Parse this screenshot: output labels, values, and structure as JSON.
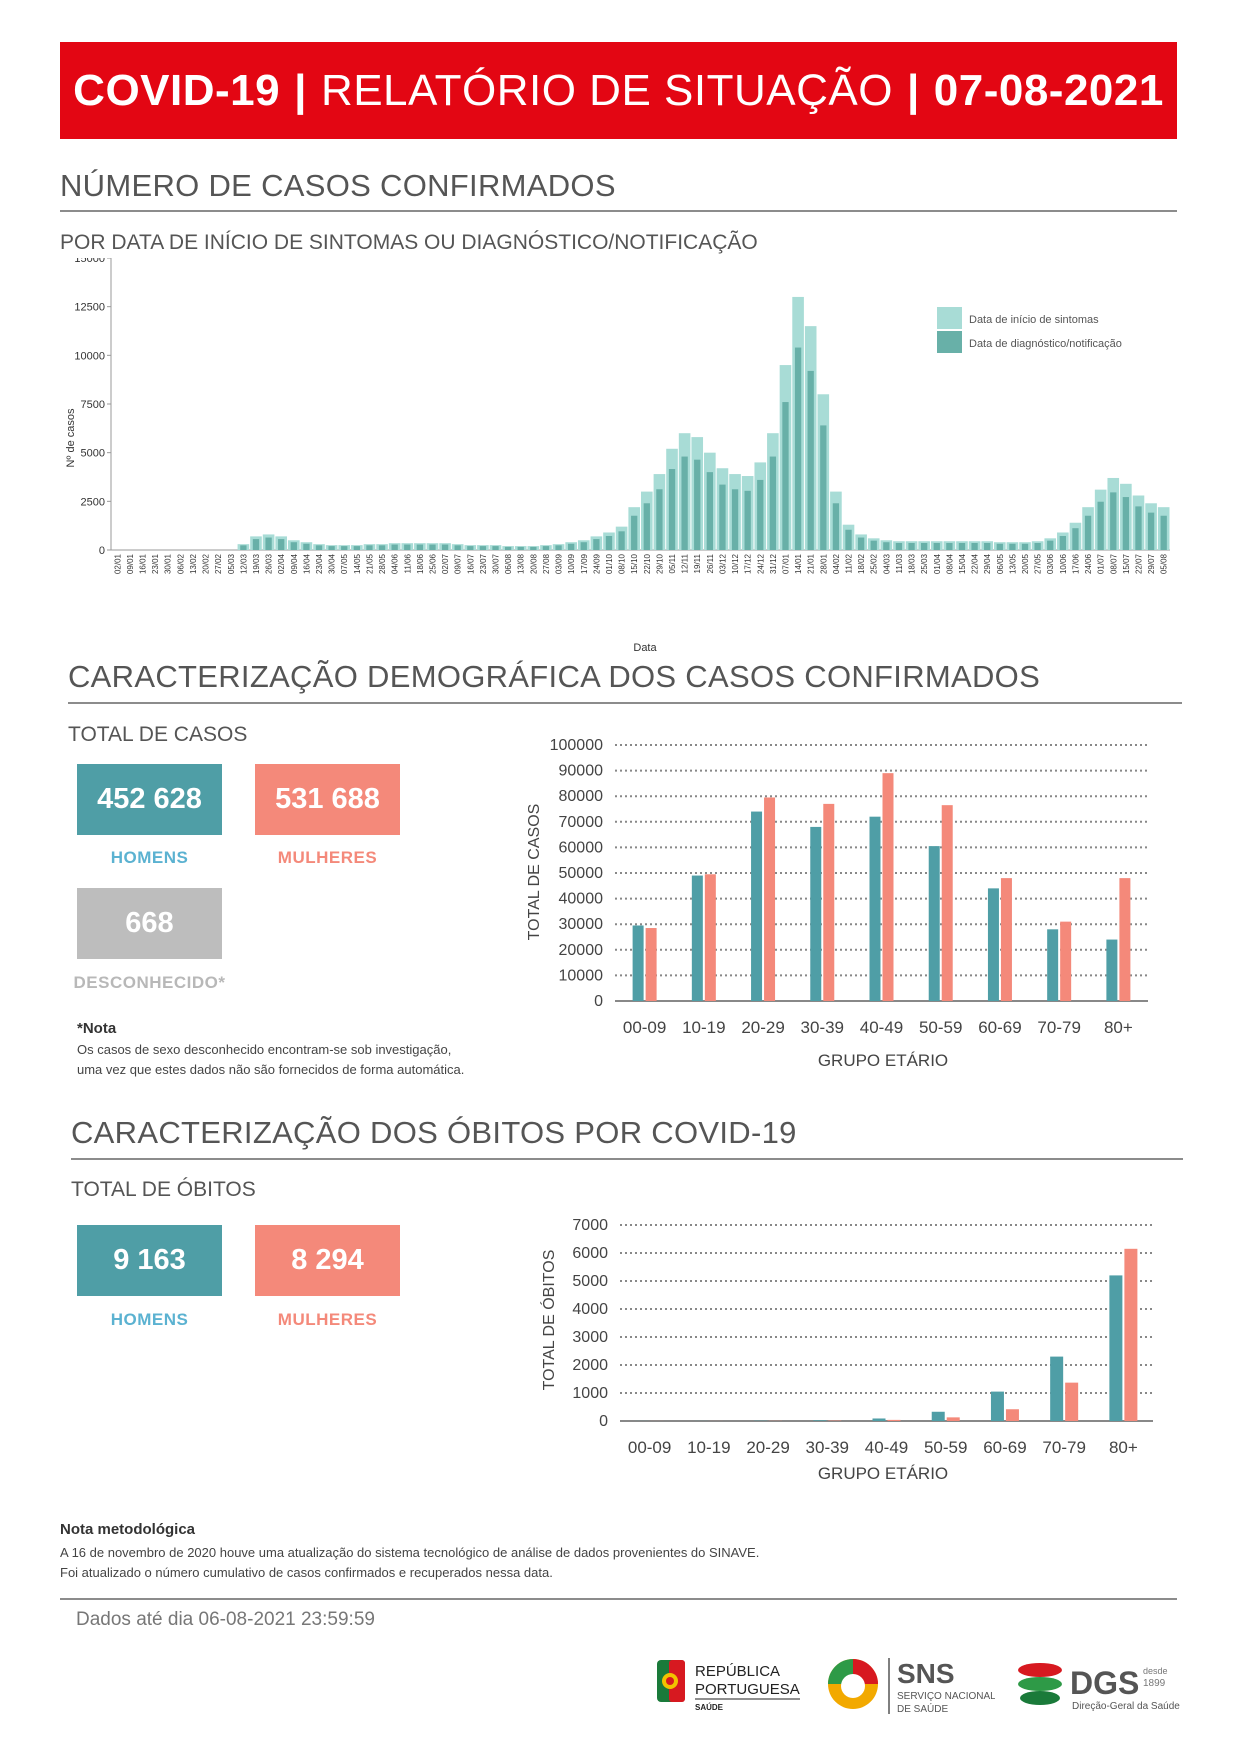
{
  "header": {
    "part1": "COVID-19",
    "sep1": "|",
    "part2": "RELATÓRIO DE SITUAÇÃO",
    "sep2": "|",
    "date": "07-08-2021"
  },
  "section1": {
    "title": "NÚMERO DE CASOS CONFIRMADOS",
    "subtitle": "POR DATA DE INÍCIO DE SINTOMAS OU DIAGNÓSTICO/NOTIFICAÇÃO"
  },
  "section2": {
    "title": "CARACTERIZAÇÃO DEMOGRÁFICA DOS CASOS CONFIRMADOS",
    "subtitle": "TOTAL DE CASOS",
    "men_value": "452 628",
    "men_label": "HOMENS",
    "women_value": "531 688",
    "women_label": "MULHERES",
    "unknown_value": "668",
    "unknown_label": "DESCONHECIDO*",
    "note_title": "*Nota",
    "note_line1": "Os casos de sexo desconhecido encontram-se sob investigação,",
    "note_line2": "uma vez que estes dados não são fornecidos de forma automática."
  },
  "section3": {
    "title": "CARACTERIZAÇÃO DOS ÓBITOS POR COVID-19",
    "subtitle": "TOTAL DE ÓBITOS",
    "men_value": "9 163",
    "men_label": "HOMENS",
    "women_value": "8 294",
    "women_label": "MULHERES"
  },
  "methodology": {
    "title": "Nota metodológica",
    "line1": "A 16 de novembro de 2020 houve uma atualização do sistema tecnológico de análise de dados provenientes do SINAVE.",
    "line2": "Foi atualizado o número cumulativo de casos confirmados e recuperados nessa data."
  },
  "footer": {
    "date_text": "Dados até dia 06-08-2021 23:59:59",
    "logo1_line1": "REPÚBLICA",
    "logo1_line2": "PORTUGUESA",
    "logo1_line3": "SAÚDE",
    "logo2_title": "SNS",
    "logo2_line1": "SERVIÇO NACIONAL",
    "logo2_line2": "DE SAÚDE",
    "logo3_title": "DGS",
    "logo3_since1": "desde",
    "logo3_since2": "1899",
    "logo3_line": "Direção-Geral da Saúde"
  },
  "colors": {
    "teal": "#4f9ea6",
    "salmon": "#f4897a",
    "gray": "#bdbdbd",
    "light_teal": "#a8dcd6",
    "mid_teal": "#68b0a8",
    "red": "#e30613",
    "men_label": "#5bb2d1",
    "women_label": "#f4897a",
    "unknown_label": "#b8b8b8"
  },
  "chart_data": [
    {
      "type": "bar",
      "ylabel": "Nº de casos",
      "xlabel": "Data",
      "ylim": [
        0,
        15000
      ],
      "yticks": [
        0,
        2500,
        5000,
        7500,
        10000,
        12500,
        15000
      ],
      "grid": false,
      "legend": "top-right",
      "series": [
        {
          "name": "Data de início de sintomas",
          "color": "#a8dcd6"
        },
        {
          "name": "Data de diagnóstico/notificação",
          "color": "#68b0a8"
        }
      ],
      "categories": [
        "02/01",
        "09/01",
        "16/01",
        "23/01",
        "30/01",
        "06/02",
        "13/02",
        "20/02",
        "27/02",
        "05/03",
        "12/03",
        "19/03",
        "26/03",
        "02/04",
        "09/04",
        "16/04",
        "23/04",
        "30/04",
        "07/05",
        "14/05",
        "21/05",
        "28/05",
        "04/06",
        "11/06",
        "18/06",
        "25/06",
        "02/07",
        "09/07",
        "16/07",
        "23/07",
        "30/07",
        "06/08",
        "13/08",
        "20/08",
        "27/08",
        "03/09",
        "10/09",
        "17/09",
        "24/09",
        "01/10",
        "08/10",
        "15/10",
        "22/10",
        "29/10",
        "05/11",
        "12/11",
        "19/11",
        "26/11",
        "03/12",
        "10/12",
        "17/12",
        "24/12",
        "31/12",
        "07/01",
        "14/01",
        "21/01",
        "28/01",
        "04/02",
        "11/02",
        "18/02",
        "25/02",
        "04/03",
        "11/03",
        "18/03",
        "25/03",
        "01/04",
        "08/04",
        "15/04",
        "22/04",
        "29/04",
        "06/05",
        "13/05",
        "20/05",
        "27/05",
        "03/06",
        "10/06",
        "17/06",
        "24/06",
        "01/07",
        "08/07",
        "15/07",
        "22/07",
        "29/07",
        "05/08"
      ],
      "values": [
        0,
        0,
        0,
        0,
        0,
        0,
        0,
        0,
        0,
        0,
        300,
        700,
        800,
        700,
        500,
        400,
        300,
        250,
        250,
        250,
        300,
        300,
        350,
        350,
        350,
        350,
        350,
        300,
        250,
        250,
        250,
        200,
        200,
        200,
        250,
        300,
        400,
        500,
        700,
        900,
        1200,
        2200,
        3000,
        3900,
        5200,
        6000,
        5800,
        5000,
        4200,
        3900,
        3800,
        4500,
        6000,
        9500,
        13000,
        11500,
        8000,
        3000,
        1300,
        800,
        600,
        500,
        450,
        450,
        450,
        450,
        450,
        450,
        450,
        450,
        400,
        400,
        400,
        450,
        600,
        900,
        1400,
        2200,
        3100,
        3700,
        3400,
        2800,
        2400,
        2200
      ]
    },
    {
      "type": "bar",
      "ylabel": "TOTAL DE CASOS",
      "xlabel": "GRUPO ETÁRIO",
      "ylim": [
        0,
        100000
      ],
      "yticks": [
        0,
        10000,
        20000,
        30000,
        40000,
        50000,
        60000,
        70000,
        80000,
        90000,
        100000
      ],
      "categories": [
        "00-09",
        "10-19",
        "20-29",
        "30-39",
        "40-49",
        "50-59",
        "60-69",
        "70-79",
        "80+"
      ],
      "series": [
        {
          "color": "#4f9ea6",
          "values": [
            29500,
            49000,
            74000,
            68000,
            72000,
            60500,
            44000,
            28000,
            24000
          ]
        },
        {
          "color": "#f4897a",
          "values": [
            28500,
            49500,
            79500,
            77000,
            89000,
            76500,
            48000,
            31000,
            48000
          ]
        }
      ]
    },
    {
      "type": "bar",
      "ylabel": "TOTAL DE ÓBITOS",
      "xlabel": "GRUPO ETÁRIO",
      "ylim": [
        0,
        7000
      ],
      "yticks": [
        0,
        1000,
        2000,
        3000,
        4000,
        5000,
        6000,
        7000
      ],
      "categories": [
        "00-09",
        "10-19",
        "20-29",
        "30-39",
        "40-49",
        "50-59",
        "60-69",
        "70-79",
        "80+"
      ],
      "series": [
        {
          "color": "#4f9ea6",
          "values": [
            3,
            3,
            10,
            25,
            90,
            330,
            1050,
            2300,
            5200
          ]
        },
        {
          "color": "#f4897a",
          "values": [
            2,
            2,
            6,
            15,
            40,
            130,
            420,
            1370,
            6150
          ]
        }
      ]
    }
  ]
}
